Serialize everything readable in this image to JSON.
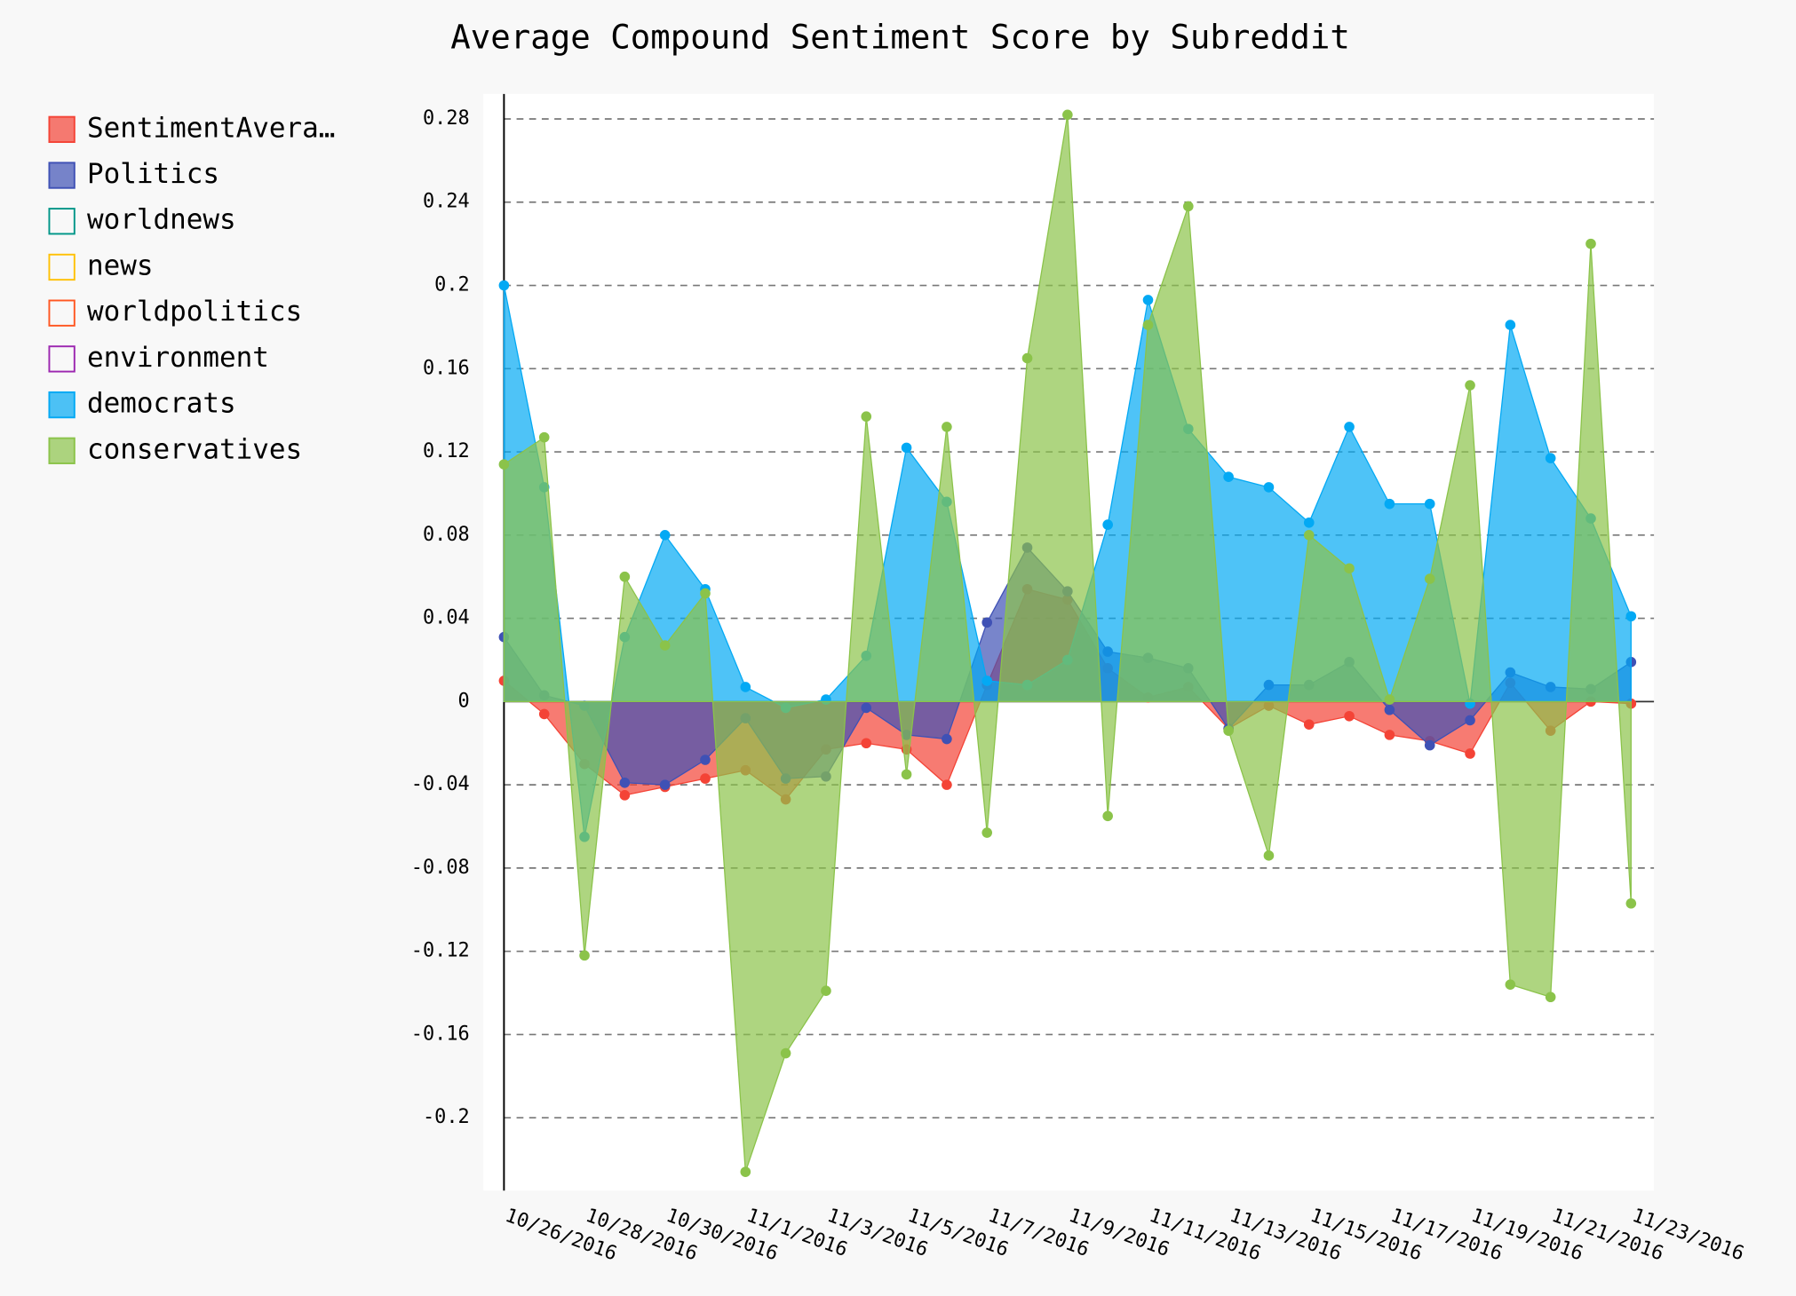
{
  "chart_data": {
    "type": "area",
    "title": "Average Compound Sentiment Score by Subreddit",
    "x": [
      "10/26/2016",
      null,
      "10/28/2016",
      null,
      "10/30/2016",
      null,
      "11/1/2016",
      null,
      "11/3/2016",
      null,
      "11/5/2016",
      null,
      "11/7/2016",
      null,
      "11/9/2016",
      null,
      "11/11/2016",
      null,
      "11/13/2016",
      null,
      "11/15/2016",
      null,
      "11/17/2016",
      null,
      "11/19/2016",
      null,
      "11/21/2016",
      null,
      "11/23/2016"
    ],
    "series": [
      {
        "name": "SentimentAvera…",
        "color": "#F44336",
        "values": [
          0.01,
          -0.006,
          -0.03,
          -0.045,
          -0.041,
          -0.037,
          -0.033,
          -0.047,
          -0.023,
          -0.02,
          -0.023,
          -0.04,
          0.008,
          0.054,
          0.049,
          0.016,
          0.002,
          0.007,
          -0.013,
          -0.002,
          -0.011,
          -0.007,
          -0.016,
          -0.019,
          -0.025,
          0.009,
          -0.014,
          0.0,
          -0.001
        ]
      },
      {
        "name": "Politics",
        "color": "#3F51B5",
        "values": [
          0.031,
          0.003,
          -0.002,
          -0.039,
          -0.04,
          -0.028,
          -0.008,
          -0.037,
          -0.036,
          -0.003,
          -0.016,
          -0.018,
          0.038,
          0.074,
          0.053,
          0.024,
          0.021,
          0.016,
          -0.013,
          0.008,
          0.008,
          0.019,
          -0.004,
          -0.021,
          -0.009,
          0.014,
          0.007,
          0.006,
          0.019
        ]
      },
      {
        "name": "worldnews",
        "color": "#009688",
        "values": [
          null,
          null,
          null,
          null,
          null,
          null,
          null,
          null,
          null,
          null,
          null,
          null,
          null,
          null,
          null,
          null,
          null,
          null,
          null,
          null,
          null,
          null,
          null,
          null,
          null,
          null,
          null,
          null,
          null
        ]
      },
      {
        "name": "news",
        "color": "#FFC107",
        "values": [
          null,
          null,
          null,
          null,
          null,
          null,
          null,
          null,
          null,
          null,
          null,
          null,
          null,
          null,
          null,
          null,
          null,
          null,
          null,
          null,
          null,
          null,
          null,
          null,
          null,
          null,
          null,
          null,
          null
        ]
      },
      {
        "name": "worldpolitics",
        "color": "#FF5722",
        "values": [
          null,
          null,
          null,
          null,
          null,
          null,
          null,
          null,
          null,
          null,
          null,
          null,
          null,
          null,
          null,
          null,
          null,
          null,
          null,
          null,
          null,
          null,
          null,
          null,
          null,
          null,
          null,
          null,
          null
        ]
      },
      {
        "name": "environment",
        "color": "#9C27B0",
        "values": [
          null,
          null,
          null,
          null,
          null,
          null,
          null,
          null,
          null,
          null,
          null,
          null,
          null,
          null,
          null,
          null,
          null,
          null,
          null,
          null,
          null,
          null,
          null,
          null,
          null,
          null,
          null,
          null,
          null
        ]
      },
      {
        "name": "democrats",
        "color": "#03A9F4",
        "values": [
          0.2,
          0.103,
          -0.065,
          0.031,
          0.08,
          0.054,
          0.007,
          -0.003,
          0.001,
          0.022,
          0.122,
          0.096,
          0.01,
          0.008,
          0.02,
          0.085,
          0.193,
          0.131,
          0.108,
          0.103,
          0.086,
          0.132,
          0.095,
          0.095,
          -0.001,
          0.181,
          0.117,
          0.088,
          0.041
        ]
      },
      {
        "name": "conservatives",
        "color": "#8BC34A",
        "values": [
          0.114,
          0.127,
          -0.122,
          0.06,
          0.027,
          0.052,
          -0.226,
          -0.169,
          -0.139,
          0.137,
          -0.035,
          0.132,
          -0.063,
          0.165,
          0.282,
          -0.055,
          0.181,
          0.238,
          -0.014,
          -0.074,
          0.08,
          0.064,
          0.001,
          0.059,
          0.152,
          -0.136,
          -0.142,
          0.22,
          -0.097
        ]
      }
    ],
    "ylim": [
      -0.235,
      0.292
    ],
    "yticks": [
      -0.2,
      -0.16,
      -0.12,
      -0.08,
      -0.04,
      0,
      0.04,
      0.08,
      0.12,
      0.16,
      0.2,
      0.24,
      0.28
    ],
    "grid": true
  }
}
